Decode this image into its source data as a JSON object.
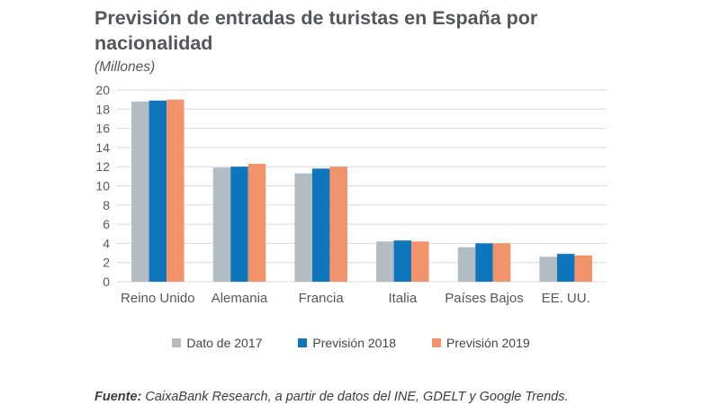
{
  "chart_data": {
    "type": "bar",
    "title": "Previsión de entradas de turistas en España por nacionalidad",
    "subtitle": "(Millones)",
    "categories": [
      "Reino Unido",
      "Alemania",
      "Francia",
      "Italia",
      "Países Bajos",
      "EE. UU."
    ],
    "series": [
      {
        "name": "Dato de 2017",
        "color": "#b4bcc3",
        "values": [
          18.8,
          11.9,
          11.3,
          4.2,
          3.6,
          2.6
        ]
      },
      {
        "name": "Previsión 2018",
        "color": "#0e76bd",
        "values": [
          18.9,
          12.0,
          11.8,
          4.3,
          4.0,
          2.9
        ]
      },
      {
        "name": "Previsión 2019",
        "color": "#f3936c",
        "values": [
          19.0,
          12.3,
          12.0,
          4.2,
          4.0,
          2.75
        ]
      }
    ],
    "xlabel": "",
    "ylabel": "",
    "ylim": [
      0,
      20
    ],
    "ytick_step": 2,
    "grid": true,
    "legend_position": "bottom"
  },
  "source": {
    "label": "Fuente:",
    "text": "CaixaBank Research, a partir de datos del INE, GDELT y Google Trends."
  },
  "colors": {
    "gridline": "#d9d9d9",
    "axis_text": "#58585a",
    "title_text": "#55565a"
  }
}
